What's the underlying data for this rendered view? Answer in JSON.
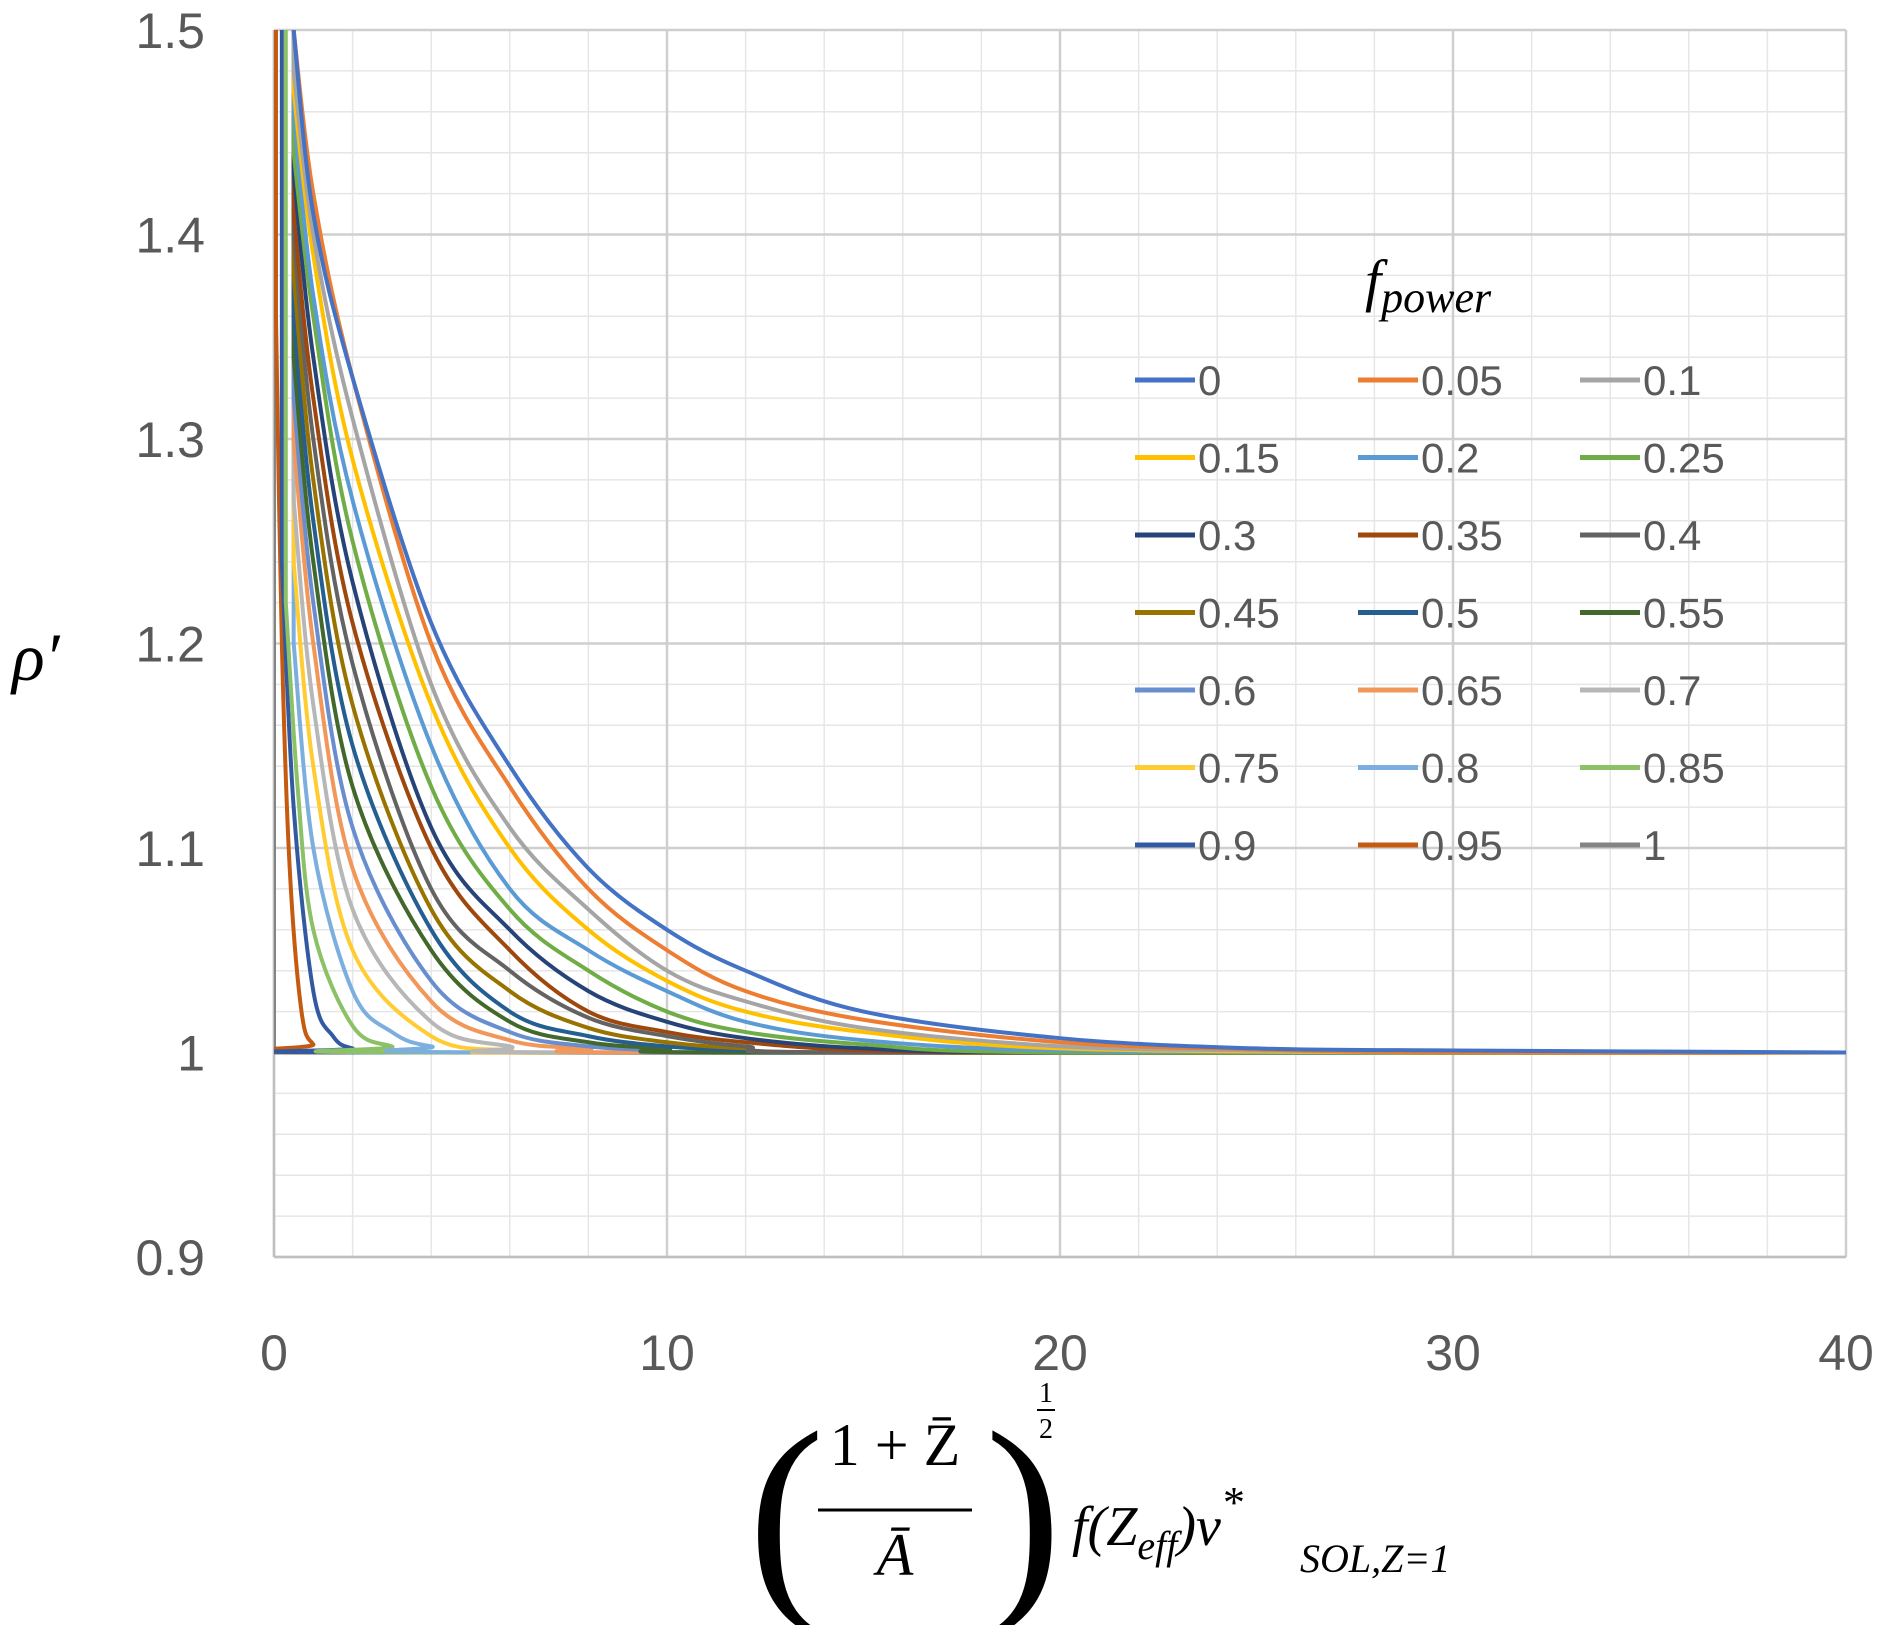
{
  "chart_data": {
    "type": "line",
    "xlabel_parts": {
      "numerator": "1 + Z̄",
      "denominator": "Ā",
      "exponent_num": "1",
      "exponent_den": "2",
      "func": "f(Z",
      "func_sub": "eff",
      "func_close": ")ν",
      "nu_sup": "*",
      "nu_sub": "SOL,Z=1"
    },
    "ylabel": "ρ′",
    "legend_title_main": "f",
    "legend_title_sub": "power",
    "xlim": [
      0,
      40
    ],
    "ylim": [
      0.9,
      1.5
    ],
    "x_ticks": [
      0,
      10,
      20,
      30,
      40
    ],
    "x_tick_labels": [
      "0",
      "10",
      "20",
      "30",
      "40"
    ],
    "y_ticks": [
      0.9,
      1.0,
      1.1,
      1.2,
      1.3,
      1.4,
      1.5
    ],
    "y_tick_labels": [
      "0.9",
      "1",
      "1.1",
      "1.2",
      "1.3",
      "1.4",
      "1.5"
    ],
    "grid": true,
    "legend_position": "top-right",
    "series_model": "y = 1 + a·exp(-x/s); values in series[].points are [x, y] in data units",
    "series": [
      {
        "name": "0",
        "color": "#4472C4",
        "points": [
          [
            0.5,
            1.5
          ],
          [
            1,
            1.41
          ],
          [
            2,
            1.33
          ],
          [
            4,
            1.21
          ],
          [
            6,
            1.14
          ],
          [
            8,
            1.09
          ],
          [
            10,
            1.06
          ],
          [
            12,
            1.04
          ],
          [
            15,
            1.02
          ],
          [
            20,
            1.007
          ],
          [
            25,
            1.002
          ],
          [
            30,
            1.001
          ],
          [
            40,
            1.0
          ]
        ]
      },
      {
        "name": "0.05",
        "color": "#ED7D31",
        "points": [
          [
            0.5,
            1.5
          ],
          [
            1,
            1.42
          ],
          [
            2,
            1.33
          ],
          [
            4,
            1.2
          ],
          [
            6,
            1.13
          ],
          [
            8,
            1.08
          ],
          [
            10,
            1.05
          ],
          [
            12,
            1.03
          ],
          [
            15,
            1.016
          ],
          [
            20,
            1.005
          ],
          [
            25,
            1.0015
          ],
          [
            30,
            1.0
          ],
          [
            40,
            1.0
          ]
        ]
      },
      {
        "name": "0.1",
        "color": "#A5A5A5",
        "points": [
          [
            0.5,
            1.48
          ],
          [
            1,
            1.4
          ],
          [
            2,
            1.31
          ],
          [
            4,
            1.18
          ],
          [
            6,
            1.11
          ],
          [
            8,
            1.07
          ],
          [
            10,
            1.04
          ],
          [
            12,
            1.025
          ],
          [
            15,
            1.012
          ],
          [
            20,
            1.003
          ],
          [
            25,
            1.001
          ],
          [
            30,
            1.0
          ],
          [
            40,
            1.0
          ]
        ]
      },
      {
        "name": "0.15",
        "color": "#FFC000",
        "points": [
          [
            0.5,
            1.47
          ],
          [
            1,
            1.39
          ],
          [
            2,
            1.29
          ],
          [
            4,
            1.17
          ],
          [
            6,
            1.1
          ],
          [
            8,
            1.06
          ],
          [
            10,
            1.035
          ],
          [
            12,
            1.02
          ],
          [
            15,
            1.01
          ],
          [
            20,
            1.002
          ],
          [
            30,
            1.0
          ],
          [
            40,
            1.0
          ]
        ]
      },
      {
        "name": "0.2",
        "color": "#5B9BD5",
        "points": [
          [
            0.5,
            1.46
          ],
          [
            1,
            1.37
          ],
          [
            2,
            1.27
          ],
          [
            4,
            1.15
          ],
          [
            6,
            1.08
          ],
          [
            8,
            1.05
          ],
          [
            10,
            1.03
          ],
          [
            12,
            1.015
          ],
          [
            15,
            1.006
          ],
          [
            20,
            1.001
          ],
          [
            30,
            1.0
          ],
          [
            40,
            1.0
          ]
        ]
      },
      {
        "name": "0.25",
        "color": "#70AD47",
        "points": [
          [
            0.5,
            1.44
          ],
          [
            1,
            1.36
          ],
          [
            2,
            1.25
          ],
          [
            4,
            1.13
          ],
          [
            6,
            1.07
          ],
          [
            8,
            1.04
          ],
          [
            10,
            1.02
          ],
          [
            12,
            1.01
          ],
          [
            15,
            1.004
          ],
          [
            20,
            1.0
          ],
          [
            40,
            1.0
          ]
        ]
      },
      {
        "name": "0.3",
        "color": "#264478",
        "points": [
          [
            0.5,
            1.43
          ],
          [
            1,
            1.34
          ],
          [
            2,
            1.23
          ],
          [
            4,
            1.11
          ],
          [
            6,
            1.06
          ],
          [
            8,
            1.03
          ],
          [
            10,
            1.015
          ],
          [
            12,
            1.007
          ],
          [
            15,
            1.002
          ],
          [
            20,
            1.0
          ],
          [
            40,
            1.0
          ]
        ]
      },
      {
        "name": "0.35",
        "color": "#9E480E",
        "points": [
          [
            0.5,
            1.41
          ],
          [
            1,
            1.32
          ],
          [
            2,
            1.21
          ],
          [
            4,
            1.1
          ],
          [
            6,
            1.05
          ],
          [
            8,
            1.02
          ],
          [
            10,
            1.01
          ],
          [
            12,
            1.005
          ],
          [
            15,
            1.001
          ],
          [
            20,
            1.0
          ],
          [
            40,
            1.0
          ]
        ]
      },
      {
        "name": "0.4",
        "color": "#636363",
        "points": [
          [
            0.5,
            1.4
          ],
          [
            1,
            1.3
          ],
          [
            2,
            1.19
          ],
          [
            4,
            1.08
          ],
          [
            6,
            1.04
          ],
          [
            8,
            1.017
          ],
          [
            10,
            1.008
          ],
          [
            12,
            1.003
          ],
          [
            15,
            1.0
          ],
          [
            40,
            1.0
          ]
        ]
      },
      {
        "name": "0.45",
        "color": "#997300",
        "points": [
          [
            0.5,
            1.38
          ],
          [
            1,
            1.28
          ],
          [
            2,
            1.17
          ],
          [
            4,
            1.07
          ],
          [
            6,
            1.03
          ],
          [
            8,
            1.012
          ],
          [
            10,
            1.005
          ],
          [
            12,
            1.002
          ],
          [
            15,
            1.0
          ],
          [
            40,
            1.0
          ]
        ]
      },
      {
        "name": "0.5",
        "color": "#255E91",
        "points": [
          [
            0.5,
            1.36
          ],
          [
            1,
            1.26
          ],
          [
            2,
            1.15
          ],
          [
            4,
            1.06
          ],
          [
            6,
            1.02
          ],
          [
            8,
            1.008
          ],
          [
            10,
            1.003
          ],
          [
            12,
            1.001
          ],
          [
            15,
            1.0
          ],
          [
            40,
            1.0
          ]
        ]
      },
      {
        "name": "0.55",
        "color": "#43682B",
        "points": [
          [
            0.5,
            1.34
          ],
          [
            1,
            1.24
          ],
          [
            2,
            1.13
          ],
          [
            4,
            1.05
          ],
          [
            6,
            1.015
          ],
          [
            8,
            1.005
          ],
          [
            10,
            1.002
          ],
          [
            12,
            1.0
          ],
          [
            40,
            1.0
          ]
        ]
      },
      {
        "name": "0.6",
        "color": "#698ED0",
        "points": [
          [
            0.5,
            1.32
          ],
          [
            1,
            1.22
          ],
          [
            2,
            1.11
          ],
          [
            4,
            1.035
          ],
          [
            6,
            1.01
          ],
          [
            8,
            1.003
          ],
          [
            10,
            1.001
          ],
          [
            12,
            1.0
          ],
          [
            40,
            1.0
          ]
        ]
      },
      {
        "name": "0.65",
        "color": "#F1975A",
        "points": [
          [
            0.5,
            1.3
          ],
          [
            1,
            1.2
          ],
          [
            2,
            1.09
          ],
          [
            4,
            1.025
          ],
          [
            6,
            1.006
          ],
          [
            8,
            1.002
          ],
          [
            10,
            1.0
          ],
          [
            40,
            1.0
          ]
        ]
      },
      {
        "name": "0.7",
        "color": "#B7B7B7",
        "points": [
          [
            0.5,
            1.27
          ],
          [
            1,
            1.17
          ],
          [
            2,
            1.07
          ],
          [
            4,
            1.015
          ],
          [
            6,
            1.003
          ],
          [
            8,
            1.0
          ],
          [
            40,
            1.0
          ]
        ]
      },
      {
        "name": "0.75",
        "color": "#FFCD33",
        "points": [
          [
            0.5,
            1.24
          ],
          [
            1,
            1.14
          ],
          [
            2,
            1.05
          ],
          [
            4,
            1.008
          ],
          [
            6,
            1.001
          ],
          [
            8,
            1.0
          ],
          [
            40,
            1.0
          ]
        ]
      },
      {
        "name": "0.8",
        "color": "#7CAFDD",
        "points": [
          [
            0.5,
            1.2
          ],
          [
            1,
            1.1
          ],
          [
            2,
            1.03
          ],
          [
            3,
            1.01
          ],
          [
            4,
            1.003
          ],
          [
            6,
            1.0
          ],
          [
            40,
            1.0
          ]
        ]
      },
      {
        "name": "0.85",
        "color": "#8CC168",
        "points": [
          [
            0.3,
            1.22
          ],
          [
            0.6,
            1.13
          ],
          [
            1,
            1.06
          ],
          [
            2,
            1.013
          ],
          [
            3,
            1.003
          ],
          [
            4,
            1.0
          ],
          [
            40,
            1.0
          ]
        ]
      },
      {
        "name": "0.9",
        "color": "#335AA1",
        "points": [
          [
            0.2,
            1.24
          ],
          [
            0.5,
            1.12
          ],
          [
            1,
            1.03
          ],
          [
            1.5,
            1.008
          ],
          [
            2,
            1.002
          ],
          [
            3,
            1.0
          ],
          [
            40,
            1.0
          ]
        ]
      },
      {
        "name": "0.95",
        "color": "#C55A11",
        "points": [
          [
            0.05,
            1.36
          ],
          [
            0.2,
            1.2
          ],
          [
            0.4,
            1.09
          ],
          [
            0.7,
            1.02
          ],
          [
            1,
            1.004
          ],
          [
            1.5,
            1.0
          ],
          [
            40,
            1.0
          ]
        ]
      },
      {
        "name": "1",
        "color": "#848484",
        "points": [
          [
            0,
            1.0
          ],
          [
            40,
            1.0
          ]
        ]
      }
    ]
  }
}
